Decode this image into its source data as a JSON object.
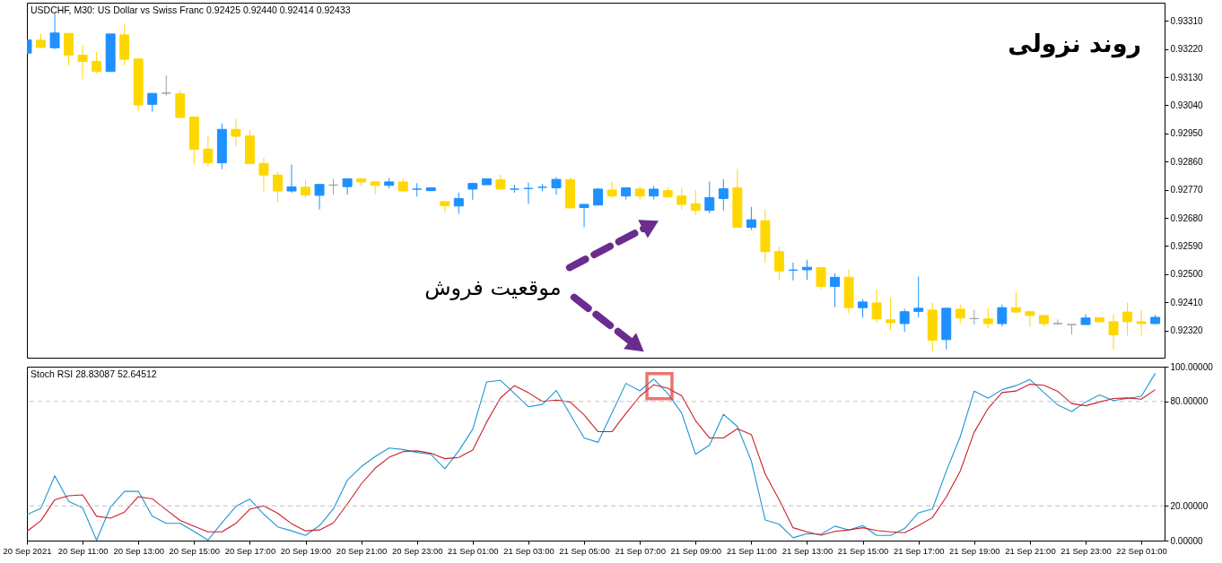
{
  "chart_data": [
    {
      "type": "candlestick",
      "title": "USDCHF, M30: US Dollar vs Swiss Franc 0.92425 0.92440 0.92414 0.92433",
      "x": [
        "2021-09-20T09:00",
        "2021-09-20T09:30",
        "2021-09-20T10:00",
        "2021-09-20T10:30",
        "2021-09-20T11:00",
        "2021-09-20T11:30",
        "2021-09-20T12:00",
        "2021-09-20T12:30",
        "2021-09-20T13:00",
        "2021-09-20T13:30",
        "2021-09-20T14:00",
        "2021-09-20T14:30",
        "2021-09-20T15:00",
        "2021-09-20T15:30",
        "2021-09-20T16:00",
        "2021-09-20T16:30",
        "2021-09-20T17:00",
        "2021-09-20T17:30",
        "2021-09-20T18:00",
        "2021-09-20T18:30",
        "2021-09-20T19:00",
        "2021-09-20T19:30",
        "2021-09-20T20:00",
        "2021-09-20T20:30",
        "2021-09-20T21:00",
        "2021-09-20T21:30",
        "2021-09-20T22:00",
        "2021-09-20T22:30",
        "2021-09-20T23:00",
        "2021-09-20T23:30",
        "2021-09-21T00:00",
        "2021-09-21T00:30",
        "2021-09-21T01:00",
        "2021-09-21T01:30",
        "2021-09-21T02:00",
        "2021-09-21T02:30",
        "2021-09-21T03:00",
        "2021-09-21T03:30",
        "2021-09-21T04:00",
        "2021-09-21T04:30",
        "2021-09-21T05:00",
        "2021-09-21T05:30",
        "2021-09-21T06:00",
        "2021-09-21T06:30",
        "2021-09-21T07:00",
        "2021-09-21T07:30",
        "2021-09-21T08:00",
        "2021-09-21T08:30",
        "2021-09-21T09:00",
        "2021-09-21T09:30",
        "2021-09-21T10:00",
        "2021-09-21T10:30",
        "2021-09-21T11:00",
        "2021-09-21T11:30",
        "2021-09-21T12:00",
        "2021-09-21T12:30",
        "2021-09-21T13:00",
        "2021-09-21T13:30",
        "2021-09-21T14:00",
        "2021-09-21T14:30",
        "2021-09-21T15:00",
        "2021-09-21T15:30",
        "2021-09-21T16:00",
        "2021-09-21T16:30",
        "2021-09-21T17:00",
        "2021-09-21T17:30",
        "2021-09-21T18:00",
        "2021-09-21T18:30",
        "2021-09-21T19:00",
        "2021-09-21T19:30",
        "2021-09-21T20:00",
        "2021-09-21T20:30",
        "2021-09-21T21:00",
        "2021-09-21T21:30",
        "2021-09-21T22:00",
        "2021-09-21T22:30",
        "2021-09-21T23:00",
        "2021-09-21T23:30",
        "2021-09-22T00:00",
        "2021-09-22T00:30",
        "2021-09-22T01:00",
        "2021-09-22T01:30"
      ],
      "ohlc": [
        [
          0.93207,
          0.93249,
          0.93207,
          0.93249
        ],
        [
          0.93248,
          0.93269,
          0.93223,
          0.93225
        ],
        [
          0.93224,
          0.93332,
          0.9322,
          0.93271
        ],
        [
          0.9327,
          0.9327,
          0.93167,
          0.932
        ],
        [
          0.932,
          0.93233,
          0.93123,
          0.9318
        ],
        [
          0.9318,
          0.9321,
          0.93142,
          0.93148
        ],
        [
          0.93148,
          0.93268,
          0.93148,
          0.93268
        ],
        [
          0.93265,
          0.93298,
          0.93167,
          0.93187
        ],
        [
          0.93188,
          0.93188,
          0.93022,
          0.93041
        ],
        [
          0.93043,
          0.93078,
          0.9302,
          0.93078
        ],
        [
          0.93079,
          0.93136,
          0.93071,
          0.93079
        ],
        [
          0.93077,
          0.93088,
          0.93001,
          0.93001
        ],
        [
          0.93002,
          0.93002,
          0.9285,
          0.92899
        ],
        [
          0.929,
          0.92942,
          0.92845,
          0.92856
        ],
        [
          0.92856,
          0.92982,
          0.92836,
          0.92963
        ],
        [
          0.92963,
          0.92997,
          0.9291,
          0.92941
        ],
        [
          0.92942,
          0.92961,
          0.92854,
          0.92854
        ],
        [
          0.92854,
          0.92872,
          0.92763,
          0.92817
        ],
        [
          0.92817,
          0.92827,
          0.92729,
          0.92766
        ],
        [
          0.92766,
          0.9285,
          0.9276,
          0.92779
        ],
        [
          0.92778,
          0.92803,
          0.92744,
          0.92753
        ],
        [
          0.92752,
          0.92787,
          0.92707,
          0.92787
        ],
        [
          0.92785,
          0.92805,
          0.92754,
          0.92785
        ],
        [
          0.9278,
          0.92806,
          0.92754,
          0.92805
        ],
        [
          0.92805,
          0.92805,
          0.9278,
          0.92795
        ],
        [
          0.92795,
          0.92795,
          0.92756,
          0.92784
        ],
        [
          0.92784,
          0.92807,
          0.92774,
          0.92795
        ],
        [
          0.92795,
          0.92807,
          0.92763,
          0.92766
        ],
        [
          0.92772,
          0.92791,
          0.92748,
          0.92772
        ],
        [
          0.92767,
          0.92776,
          0.92767,
          0.92776
        ],
        [
          0.92732,
          0.92732,
          0.92699,
          0.92719
        ],
        [
          0.92718,
          0.92761,
          0.92693,
          0.92742
        ],
        [
          0.92772,
          0.92793,
          0.92738,
          0.9279
        ],
        [
          0.92786,
          0.92805,
          0.92786,
          0.92805
        ],
        [
          0.92802,
          0.92818,
          0.92772,
          0.92772
        ],
        [
          0.92772,
          0.92786,
          0.92761,
          0.92772
        ],
        [
          0.92774,
          0.92793,
          0.92725,
          0.92774
        ],
        [
          0.92778,
          0.92788,
          0.92766,
          0.92778
        ],
        [
          0.92776,
          0.9281,
          0.92754,
          0.92803
        ],
        [
          0.92802,
          0.92809,
          0.9271,
          0.92712
        ],
        [
          0.92713,
          0.92725,
          0.9265,
          0.92723
        ],
        [
          0.92721,
          0.92776,
          0.92721,
          0.92772
        ],
        [
          0.92769,
          0.92797,
          0.92744,
          0.9275
        ],
        [
          0.9275,
          0.92776,
          0.92739,
          0.92776
        ],
        [
          0.92772,
          0.92782,
          0.92735,
          0.9275
        ],
        [
          0.9275,
          0.92782,
          0.92739,
          0.92772
        ],
        [
          0.92767,
          0.92778,
          0.92744,
          0.92747
        ],
        [
          0.9275,
          0.92776,
          0.92706,
          0.92723
        ],
        [
          0.92725,
          0.92769,
          0.92688,
          0.92704
        ],
        [
          0.92704,
          0.92796,
          0.92695,
          0.92745
        ],
        [
          0.92742,
          0.92804,
          0.92704,
          0.92773
        ],
        [
          0.92776,
          0.92837,
          0.92648,
          0.9265
        ],
        [
          0.9265,
          0.92715,
          0.92641,
          0.92674
        ],
        [
          0.92671,
          0.92708,
          0.92537,
          0.92572
        ],
        [
          0.92572,
          0.92588,
          0.9248,
          0.9251
        ],
        [
          0.92513,
          0.92537,
          0.9248,
          0.92513
        ],
        [
          0.92514,
          0.92546,
          0.92482,
          0.92522
        ],
        [
          0.92521,
          0.92523,
          0.92452,
          0.92461
        ],
        [
          0.92461,
          0.92503,
          0.92395,
          0.9249
        ],
        [
          0.9249,
          0.92516,
          0.92375,
          0.92393
        ],
        [
          0.92393,
          0.9242,
          0.92361,
          0.92411
        ],
        [
          0.92408,
          0.92452,
          0.92345,
          0.92357
        ],
        [
          0.92354,
          0.92426,
          0.9232,
          0.92345
        ],
        [
          0.92342,
          0.92389,
          0.92316,
          0.9238
        ],
        [
          0.92381,
          0.92493,
          0.92361,
          0.92391
        ],
        [
          0.92385,
          0.92408,
          0.92254,
          0.92289
        ],
        [
          0.92291,
          0.92392,
          0.92259,
          0.92391
        ],
        [
          0.92388,
          0.92403,
          0.92342,
          0.9236
        ],
        [
          0.92358,
          0.92386,
          0.92339,
          0.92358
        ],
        [
          0.92357,
          0.92391,
          0.92327,
          0.92342
        ],
        [
          0.92342,
          0.92403,
          0.92333,
          0.92393
        ],
        [
          0.92393,
          0.92442,
          0.92376,
          0.92379
        ],
        [
          0.9238,
          0.92383,
          0.92332,
          0.92368
        ],
        [
          0.92368,
          0.92368,
          0.92332,
          0.92342
        ],
        [
          0.92342,
          0.92355,
          0.92338,
          0.92342
        ],
        [
          0.92339,
          0.92339,
          0.92308,
          0.92339
        ],
        [
          0.92339,
          0.92372,
          0.92338,
          0.9236
        ],
        [
          0.92361,
          0.92361,
          0.92345,
          0.92348
        ],
        [
          0.92348,
          0.92373,
          0.92259,
          0.92306
        ],
        [
          0.92379,
          0.92409,
          0.92304,
          0.92348
        ],
        [
          0.92348,
          0.92384,
          0.92304,
          0.92342
        ],
        [
          0.92342,
          0.9237,
          0.9234,
          0.92362
        ]
      ],
      "colors": [
        "#1e90ff",
        "#ffd700",
        "#1e90ff",
        "#ffd700",
        "#ffd700",
        "#ffd700",
        "#1e90ff",
        "#ffd700",
        "#ffd700",
        "#1e90ff",
        "#a0a0a0",
        "#ffd700",
        "#ffd700",
        "#ffd700",
        "#1e90ff",
        "#ffd700",
        "#ffd700",
        "#ffd700",
        "#ffd700",
        "#1e90ff",
        "#ffd700",
        "#1e90ff",
        "#a0a0a0",
        "#1e90ff",
        "#ffd700",
        "#ffd700",
        "#1e90ff",
        "#ffd700",
        "#1e90ff",
        "#1e90ff",
        "#ffd700",
        "#1e90ff",
        "#1e90ff",
        "#1e90ff",
        "#ffd700",
        "#1e90ff",
        "#1e90ff",
        "#1e90ff",
        "#1e90ff",
        "#ffd700",
        "#1e90ff",
        "#1e90ff",
        "#ffd700",
        "#1e90ff",
        "#ffd700",
        "#1e90ff",
        "#ffd700",
        "#ffd700",
        "#ffd700",
        "#1e90ff",
        "#1e90ff",
        "#ffd700",
        "#1e90ff",
        "#ffd700",
        "#ffd700",
        "#1e90ff",
        "#1e90ff",
        "#ffd700",
        "#1e90ff",
        "#ffd700",
        "#1e90ff",
        "#ffd700",
        "#ffd700",
        "#1e90ff",
        "#1e90ff",
        "#ffd700",
        "#1e90ff",
        "#ffd700",
        "#a0a0a0",
        "#ffd700",
        "#1e90ff",
        "#ffd700",
        "#ffd700",
        "#ffd700",
        "#a0a0a0",
        "#a0a0a0",
        "#1e90ff",
        "#ffd700",
        "#ffd700",
        "#ffd700",
        "#ffd700",
        "#1e90ff"
      ],
      "xlim": [
        "2021-09-20T09:00",
        "2021-09-22T01:50"
      ],
      "ylim": [
        0.92233,
        0.93368
      ],
      "yticks": [
        {
          "value": 0.9331,
          "label": "0.93310"
        },
        {
          "value": 0.9322,
          "label": "0.93220"
        },
        {
          "value": 0.9313,
          "label": "0.93130"
        },
        {
          "value": 0.9304,
          "label": "0.93040"
        },
        {
          "value": 0.9295,
          "label": "0.92950"
        },
        {
          "value": 0.9286,
          "label": "0.92860"
        },
        {
          "value": 0.9277,
          "label": "0.92770"
        },
        {
          "value": 0.9268,
          "label": "0.92680"
        },
        {
          "value": 0.9259,
          "label": "0.92590"
        },
        {
          "value": 0.925,
          "label": "0.92500"
        },
        {
          "value": 0.9241,
          "label": "0.92410"
        },
        {
          "value": 0.9232,
          "label": "0.92320"
        }
      ],
      "tick_labels": "y",
      "annotations": [
        "روند نزولی",
        "موقعیت فروش"
      ]
    },
    {
      "type": "line",
      "title": "Stoch RSI 28.83087 52.64512",
      "x": [
        "2021-09-20T09:00",
        "2021-09-20T09:30",
        "2021-09-20T10:00",
        "2021-09-20T10:30",
        "2021-09-20T11:00",
        "2021-09-20T11:30",
        "2021-09-20T12:00",
        "2021-09-20T12:30",
        "2021-09-20T13:00",
        "2021-09-20T13:30",
        "2021-09-20T14:00",
        "2021-09-20T14:30",
        "2021-09-20T15:00",
        "2021-09-20T15:30",
        "2021-09-20T16:00",
        "2021-09-20T16:30",
        "2021-09-20T17:00",
        "2021-09-20T17:30",
        "2021-09-20T18:00",
        "2021-09-20T18:30",
        "2021-09-20T19:00",
        "2021-09-20T19:30",
        "2021-09-20T20:00",
        "2021-09-20T20:30",
        "2021-09-20T21:00",
        "2021-09-20T21:30",
        "2021-09-20T22:00",
        "2021-09-20T22:30",
        "2021-09-20T23:00",
        "2021-09-20T23:30",
        "2021-09-21T00:00",
        "2021-09-21T00:30",
        "2021-09-21T01:00",
        "2021-09-21T01:30",
        "2021-09-21T02:00",
        "2021-09-21T02:30",
        "2021-09-21T03:00",
        "2021-09-21T03:30",
        "2021-09-21T04:00",
        "2021-09-21T04:30",
        "2021-09-21T05:00",
        "2021-09-21T05:30",
        "2021-09-21T06:00",
        "2021-09-21T06:30",
        "2021-09-21T07:00",
        "2021-09-21T07:30",
        "2021-09-21T08:00",
        "2021-09-21T08:30",
        "2021-09-21T09:00",
        "2021-09-21T09:30",
        "2021-09-21T10:00",
        "2021-09-21T10:30",
        "2021-09-21T11:00",
        "2021-09-21T11:30",
        "2021-09-21T12:00",
        "2021-09-21T12:30",
        "2021-09-21T13:00",
        "2021-09-21T13:30",
        "2021-09-21T14:00",
        "2021-09-21T14:30",
        "2021-09-21T15:00",
        "2021-09-21T15:30",
        "2021-09-21T16:00",
        "2021-09-21T16:30",
        "2021-09-21T17:00",
        "2021-09-21T17:30",
        "2021-09-21T18:00",
        "2021-09-21T18:30",
        "2021-09-21T19:00",
        "2021-09-21T19:30",
        "2021-09-21T20:00",
        "2021-09-21T20:30",
        "2021-09-21T21:00",
        "2021-09-21T21:30",
        "2021-09-21T22:00",
        "2021-09-21T22:30",
        "2021-09-21T23:00",
        "2021-09-21T23:30",
        "2021-09-22T00:00",
        "2021-09-22T00:30",
        "2021-09-22T01:00",
        "2021-09-22T01:30"
      ],
      "series": [
        {
          "color": "#1f96d4",
          "values": [
            14.9,
            18.5,
            37.2,
            22.6,
            18.8,
            0.3,
            19.3,
            28.3,
            28.3,
            14.0,
            9.9,
            9.9,
            5.3,
            0.3,
            10.2,
            19.7,
            23.8,
            15.2,
            7.9,
            5.6,
            3.0,
            8.6,
            18.2,
            34.7,
            42.5,
            48.3,
            53.2,
            52.4,
            50.7,
            49.6,
            41.3,
            51.6,
            64.0,
            91.2,
            92.1,
            84.6,
            76.9,
            78.3,
            86.3,
            72.6,
            59.0,
            56.5,
            73.4,
            90.4,
            86.1,
            92.9,
            84.6,
            73.4,
            49.6,
            54.9,
            72.6,
            65.6,
            45.8,
            11.9,
            9.4,
            1.6,
            4.0,
            3.6,
            8.3,
            6.1,
            8.6,
            3.0,
            3.0,
            6.9,
            16.0,
            18.2,
            40.0,
            59.8,
            86.0,
            81.8,
            86.8,
            89.1,
            92.6,
            85.1,
            78.0,
            74.2,
            79.7,
            83.8,
            80.5,
            81.7,
            83.0,
            96.2
          ]
        },
        {
          "color": "#cc1f2a",
          "values": [
            5.3,
            11.4,
            23.5,
            25.8,
            26.3,
            14.0,
            12.9,
            16.4,
            25.3,
            24.0,
            17.7,
            11.6,
            8.3,
            5.0,
            5.0,
            9.9,
            18.0,
            20.0,
            15.7,
            9.7,
            5.6,
            6.1,
            10.2,
            21.0,
            32.6,
            41.6,
            47.9,
            51.2,
            51.6,
            50.2,
            47.1,
            47.8,
            52.1,
            68.1,
            82.1,
            89.1,
            85.0,
            80.0,
            80.8,
            79.7,
            72.2,
            62.6,
            62.6,
            73.1,
            83.0,
            89.6,
            87.6,
            83.3,
            68.9,
            59.0,
            59.0,
            64.3,
            61.0,
            38.3,
            23.5,
            7.4,
            5.0,
            3.1,
            5.3,
            6.1,
            7.4,
            5.8,
            5.0,
            4.5,
            8.6,
            13.2,
            25.1,
            40.0,
            62.3,
            76.0,
            85.1,
            86.0,
            89.9,
            89.3,
            85.8,
            78.8,
            77.5,
            79.7,
            81.7,
            82.0,
            81.3,
            86.8
          ]
        }
      ],
      "xlim": [
        "2021-09-20T09:00",
        "2021-09-22T01:50"
      ],
      "xticks": [
        {
          "value": "2021-09-20T09:00",
          "label": "20 Sep 2021"
        },
        {
          "value": "2021-09-20T11:00",
          "label": "20 Sep 11:00"
        },
        {
          "value": "2021-09-20T13:00",
          "label": "20 Sep 13:00"
        },
        {
          "value": "2021-09-20T15:00",
          "label": "20 Sep 15:00"
        },
        {
          "value": "2021-09-20T17:00",
          "label": "20 Sep 17:00"
        },
        {
          "value": "2021-09-20T19:00",
          "label": "20 Sep 19:00"
        },
        {
          "value": "2021-09-20T21:00",
          "label": "20 Sep 21:00"
        },
        {
          "value": "2021-09-20T23:00",
          "label": "20 Sep 23:00"
        },
        {
          "value": "2021-09-21T01:00",
          "label": "21 Sep 01:00"
        },
        {
          "value": "2021-09-21T03:00",
          "label": "21 Sep 03:00"
        },
        {
          "value": "2021-09-21T05:00",
          "label": "21 Sep 05:00"
        },
        {
          "value": "2021-09-21T07:00",
          "label": "21 Sep 07:00"
        },
        {
          "value": "2021-09-21T09:00",
          "label": "21 Sep 09:00"
        },
        {
          "value": "2021-09-21T11:00",
          "label": "21 Sep 11:00"
        },
        {
          "value": "2021-09-21T13:00",
          "label": "21 Sep 13:00"
        },
        {
          "value": "2021-09-21T15:00",
          "label": "21 Sep 15:00"
        },
        {
          "value": "2021-09-21T17:00",
          "label": "21 Sep 17:00"
        },
        {
          "value": "2021-09-21T19:00",
          "label": "21 Sep 19:00"
        },
        {
          "value": "2021-09-21T21:00",
          "label": "21 Sep 21:00"
        },
        {
          "value": "2021-09-21T23:00",
          "label": "21 Sep 23:00"
        },
        {
          "value": "2021-09-22T01:00",
          "label": "22 Sep 01:00"
        }
      ],
      "ylim": [
        0,
        100
      ],
      "yticks": [
        {
          "value": 0,
          "label": "0.00000"
        },
        {
          "value": 20,
          "label": "20.00000"
        },
        {
          "value": 80,
          "label": "80.00000"
        },
        {
          "value": 100,
          "label": "100.00000"
        }
      ],
      "ref_lines": [
        {
          "axis": "y",
          "value": 80,
          "color": "#c0c0c0",
          "line_style": "dashed"
        },
        {
          "axis": "y",
          "value": 20,
          "color": "#c0c0c0",
          "line_style": "dashed"
        }
      ]
    }
  ]
}
